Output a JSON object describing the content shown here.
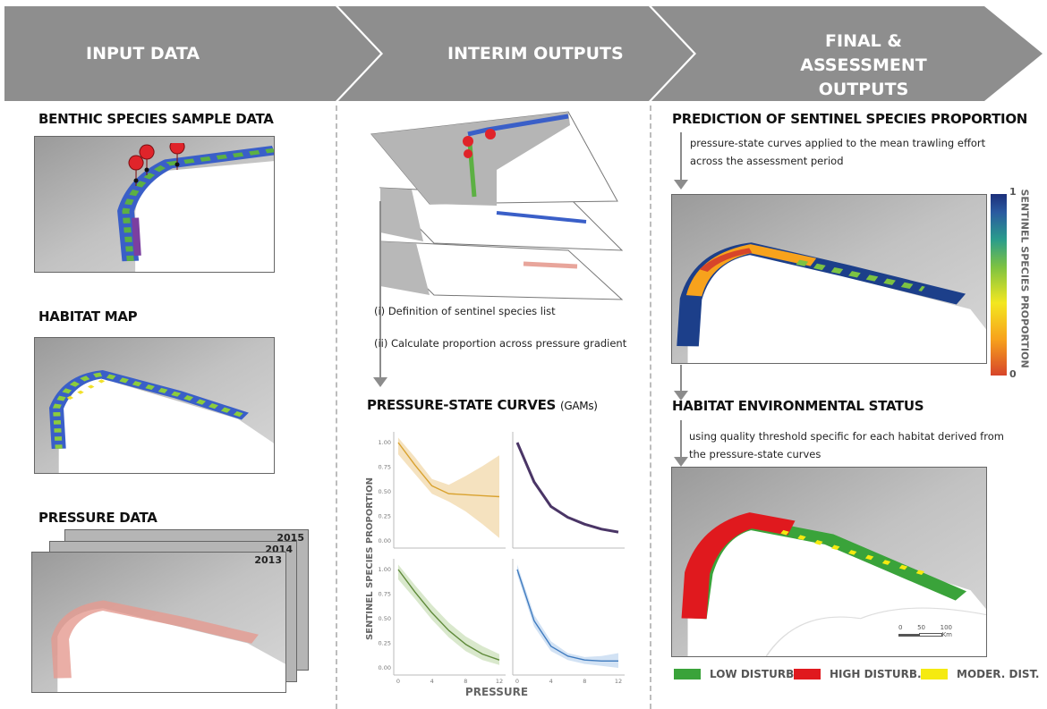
{
  "header": {
    "stages": [
      "INPUT DATA",
      "INTERIM OUTPUTS",
      "FINAL & ASSESSMENT OUTPUTS"
    ],
    "color": "#8e8e8e"
  },
  "input": {
    "benthic_title": "BENTHIC SPECIES SAMPLE DATA",
    "habitat_title": "HABITAT MAP",
    "pressure_title": "PRESSURE DATA",
    "pressure_years": [
      "2015",
      "2014",
      "2013"
    ]
  },
  "interim": {
    "step1": "(i) Definition of sentinel species list",
    "step2": "(ii) Calculate proportion across pressure gradient",
    "curves_title": "PRESSURE-STATE CURVES",
    "curves_subtitle": "(GAMs)"
  },
  "final": {
    "prediction_title": "PREDICTION OF SENTINEL SPECIES PROPORTION",
    "prediction_note": [
      "pressure-state curves  applied to the mean trawling effort",
      "across the assessment period"
    ],
    "colorbar": {
      "max": "1",
      "min": "0",
      "label": "SENTINEL SPECIES PROPORTION",
      "colors": [
        "#d7452a",
        "#f7a21c",
        "#f3e720",
        "#7cc242",
        "#2a9c8c",
        "#2a5aa0",
        "#1c2f7a"
      ]
    },
    "status_title": "HABITAT ENVIRONMENTAL STATUS",
    "status_note": [
      "using quality threshold specific for each habitat derived from",
      "the pressure-state curves"
    ],
    "scale_bar": {
      "ticks": [
        "0",
        "50",
        "100"
      ],
      "unit": "Km"
    },
    "legend": [
      {
        "label": "LOW DISTURB.",
        "color": "#3aa33a"
      },
      {
        "label": "HIGH DISTURB.",
        "color": "#e0191e"
      },
      {
        "label": "MODER. DIST.",
        "color": "#f5ea10"
      }
    ]
  },
  "chart_data": {
    "type": "line",
    "ylabel": "SENTINEL SPECIES  PROPORTION",
    "xlabel": "PRESSURE",
    "x_ticks": [
      "0",
      "4",
      "8",
      "12"
    ],
    "y_ticks": [
      "0.00",
      "0.25",
      "0.50",
      "0.75",
      "1.00"
    ],
    "xlim": [
      0,
      12
    ],
    "ylim": [
      0,
      1
    ],
    "x": [
      0,
      2,
      4,
      6,
      8,
      10,
      12
    ],
    "panels": [
      {
        "color": "#d9a22f",
        "band": "#f5e2bf",
        "values": [
          1.0,
          0.77,
          0.56,
          0.48,
          0.47,
          0.46,
          0.45
        ],
        "lower": [
          0.88,
          0.68,
          0.48,
          0.4,
          0.3,
          0.17,
          0.03
        ],
        "upper": [
          1.05,
          0.85,
          0.63,
          0.57,
          0.66,
          0.76,
          0.87
        ]
      },
      {
        "color": "#4a3566",
        "band": null,
        "values": [
          1.0,
          0.6,
          0.35,
          0.24,
          0.17,
          0.12,
          0.09
        ]
      },
      {
        "color": "#5f8a3a",
        "band": "#d9e8cc",
        "values": [
          1.0,
          0.77,
          0.56,
          0.38,
          0.24,
          0.14,
          0.08
        ],
        "lower": [
          0.9,
          0.7,
          0.49,
          0.31,
          0.17,
          0.08,
          0.03
        ],
        "upper": [
          1.05,
          0.84,
          0.64,
          0.46,
          0.32,
          0.22,
          0.14
        ]
      },
      {
        "color": "#3f7bbf",
        "band": "#d2e2f4",
        "values": [
          1.0,
          0.48,
          0.22,
          0.12,
          0.08,
          0.07,
          0.07
        ],
        "lower": [
          0.95,
          0.42,
          0.17,
          0.08,
          0.04,
          0.02,
          0.0
        ],
        "upper": [
          1.05,
          0.54,
          0.27,
          0.15,
          0.11,
          0.12,
          0.15
        ]
      }
    ]
  }
}
